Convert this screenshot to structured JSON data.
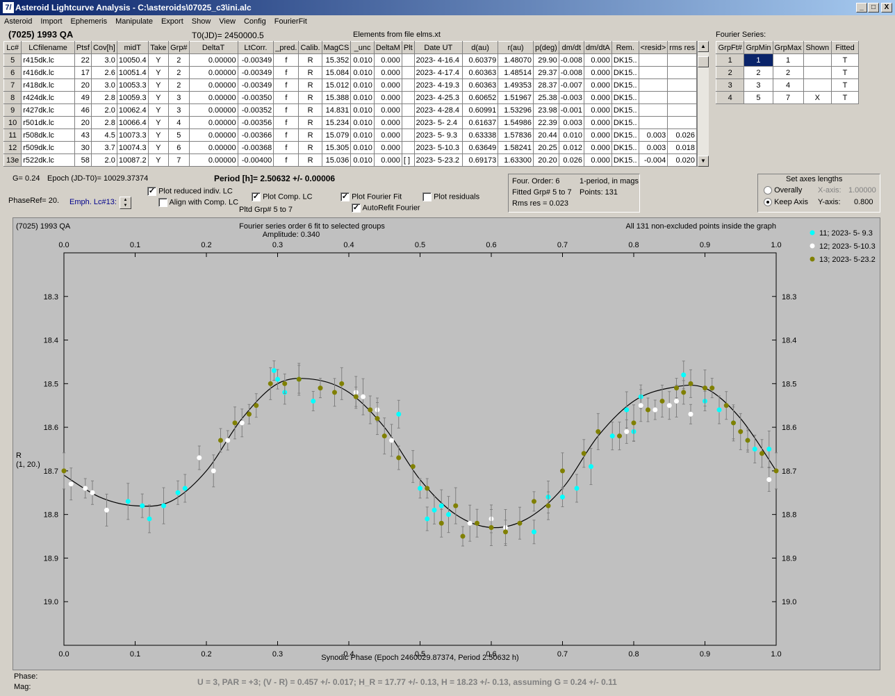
{
  "window": {
    "title": "Asteroid Lightcurve Analysis - C:\\asteroids\\07025_c3\\ini.alc",
    "icon_glyph": "7/",
    "min_glyph": "_",
    "max_glyph": "□",
    "close_glyph": "X"
  },
  "menu": [
    "Asteroid",
    "Import",
    "Ephemeris",
    "Manipulate",
    "Export",
    "Show",
    "View",
    "Config",
    "FourierFit"
  ],
  "asteroid_name": "(7025) 1993 QA",
  "t0": "T0(JD)= 2450000.5",
  "elements_file": "Elements from file elms.xt",
  "fourier_series_label": "Fourier Series:",
  "table": {
    "headers": [
      "Lc#",
      "LCfilename",
      "Ptsf",
      "Cov[h]",
      "midT",
      "Take",
      "Grp#",
      "DeltaT",
      "LtCorr.",
      "_pred.",
      "Calib.",
      "MagCS",
      "_unc",
      "DeltaM",
      "Plt",
      "Date UT",
      "d(au)",
      "r(au)",
      "p(deg)",
      "dm/dt",
      "dm/dtA",
      "Rem.",
      "<resid>",
      "rms res"
    ],
    "rows": [
      [
        "5",
        "r415dk.lc",
        "22",
        "3.0",
        "10050.4",
        "Y",
        "2",
        "0.00000",
        "-0.00349",
        "f",
        "R",
        "15.352",
        "0.010",
        "0.000",
        "",
        "2023- 4-16.4",
        "0.60379",
        "1.48070",
        "29.90",
        "-0.008",
        "0.000",
        "DK15..",
        "",
        ""
      ],
      [
        "6",
        "r416dk.lc",
        "17",
        "2.6",
        "10051.4",
        "Y",
        "2",
        "0.00000",
        "-0.00349",
        "f",
        "R",
        "15.084",
        "0.010",
        "0.000",
        "",
        "2023- 4-17.4",
        "0.60363",
        "1.48514",
        "29.37",
        "-0.008",
        "0.000",
        "DK15..",
        "",
        ""
      ],
      [
        "7",
        "r418dk.lc",
        "20",
        "3.0",
        "10053.3",
        "Y",
        "2",
        "0.00000",
        "-0.00349",
        "f",
        "R",
        "15.012",
        "0.010",
        "0.000",
        "",
        "2023- 4-19.3",
        "0.60363",
        "1.49353",
        "28.37",
        "-0.007",
        "0.000",
        "DK15..",
        "",
        ""
      ],
      [
        "8",
        "r424dk.lc",
        "49",
        "2.8",
        "10059.3",
        "Y",
        "3",
        "0.00000",
        "-0.00350",
        "f",
        "R",
        "15.388",
        "0.010",
        "0.000",
        "",
        "2023- 4-25.3",
        "0.60652",
        "1.51967",
        "25.38",
        "-0.003",
        "0.000",
        "DK15..",
        "",
        ""
      ],
      [
        "9",
        "r427dk.lc",
        "46",
        "2.0",
        "10062.4",
        "Y",
        "3",
        "0.00000",
        "-0.00352",
        "f",
        "R",
        "14.831",
        "0.010",
        "0.000",
        "",
        "2023- 4-28.4",
        "0.60991",
        "1.53296",
        "23.98",
        "-0.001",
        "0.000",
        "DK15..",
        "",
        ""
      ],
      [
        "10",
        "r501dk.lc",
        "20",
        "2.8",
        "10066.4",
        "Y",
        "4",
        "0.00000",
        "-0.00356",
        "f",
        "R",
        "15.234",
        "0.010",
        "0.000",
        "",
        "2023- 5- 2.4",
        "0.61637",
        "1.54986",
        "22.39",
        "0.003",
        "0.000",
        "DK15..",
        "",
        ""
      ],
      [
        "11",
        "r508dk.lc",
        "43",
        "4.5",
        "10073.3",
        "Y",
        "5",
        "0.00000",
        "-0.00366",
        "f",
        "R",
        "15.079",
        "0.010",
        "0.000",
        "",
        "2023- 5- 9.3",
        "0.63338",
        "1.57836",
        "20.44",
        "0.010",
        "0.000",
        "DK15..",
        "0.003",
        "0.026"
      ],
      [
        "12",
        "r509dk.lc",
        "30",
        "3.7",
        "10074.3",
        "Y",
        "6",
        "0.00000",
        "-0.00368",
        "f",
        "R",
        "15.305",
        "0.010",
        "0.000",
        "",
        "2023- 5-10.3",
        "0.63649",
        "1.58241",
        "20.25",
        "0.012",
        "0.000",
        "DK15..",
        "0.003",
        "0.018"
      ],
      [
        "13e",
        "r522dk.lc",
        "58",
        "2.0",
        "10087.2",
        "Y",
        "7",
        "0.00000",
        "-0.00400",
        "f",
        "R",
        "15.036",
        "0.010",
        "0.000",
        "[ ]",
        "2023- 5-23.2",
        "0.69173",
        "1.63300",
        "20.20",
        "0.026",
        "0.000",
        "DK15..",
        "-0.004",
        "0.020"
      ]
    ]
  },
  "fourier_table": {
    "headers": [
      "GrpFt#",
      "GrpMin",
      "GrpMax",
      "Shown",
      "Fitted"
    ],
    "rows": [
      [
        "1",
        "1",
        "1",
        "",
        "T"
      ],
      [
        "2",
        "2",
        "2",
        "",
        "T"
      ],
      [
        "3",
        "3",
        "4",
        "",
        "T"
      ],
      [
        "4",
        "5",
        "7",
        "X",
        "T"
      ]
    ]
  },
  "controls": {
    "g_value": "G= 0.24",
    "epoch": "Epoch (JD-T0)= 10029.37374",
    "period": "Period [h]= 2.50632 +/- 0.00006",
    "phaseref": "PhaseRef= 20.",
    "emph": "Emph. Lc#13:",
    "plot_reduced": "Plot reduced indiv. LC",
    "align_comp": "Align with Comp. LC",
    "plot_comp": "Plot Comp. LC",
    "pltd_grp": "Pltd Grp#  5  to   7",
    "plot_fourier": "Plot Fourier Fit",
    "autorefit": "AutoRefit Fourier",
    "plot_residuals": "Plot residuals",
    "check_glyph": "✓"
  },
  "fit_info": {
    "order": "Four. Order:  6",
    "mode": "1-period, in mags",
    "fitted": "Fitted Grp# 5 to 7",
    "points": "Points: 131",
    "rms": "Rms res      = 0.023"
  },
  "axes_panel": {
    "title": "Set axes lengths",
    "overally": "Overally",
    "keep": "Keep Axis",
    "xaxis_label": "X-axis:",
    "xaxis_val": "1.00000",
    "yaxis_label": "Y-axis:",
    "yaxis_val": "0.800"
  },
  "plot": {
    "corner_title": "(7025) 1993 QA",
    "subtitle1": "Fourier series order 6 fit to selected groups",
    "subtitle2": "Amplitude: 0.340",
    "note": "All 131 non-excluded points inside the graph",
    "ylabel1": "R",
    "ylabel2": "(1, 20.)",
    "xlabel": "Synodic Phase (Epoch 2460029.87374, Period 2.50632 h)"
  },
  "footer": {
    "phase_label": "Phase:",
    "mag_label": "Mag:",
    "summary": "U = 3, PAR = +3; (V - R) = 0.457 +/- 0.017; H_R = 17.77 +/- 0.13, H = 18.23 +/- 0.13, assuming G = 0.24 +/- 0.11"
  },
  "colors": {
    "cyan": "#00ffff",
    "white": "#ffffff",
    "olive": "#808000",
    "plot_bg": "#c0c0c0",
    "selected": "#0a246a"
  },
  "chart_data": {
    "type": "scatter",
    "title": "Fourier series order 6 fit to selected groups",
    "xlabel": "Synodic Phase (Epoch 2460029.87374, Period 2.50632 h)",
    "ylabel": "R (1, 20.)",
    "xlim": [
      0.0,
      1.0
    ],
    "ylim": [
      19.1,
      18.2
    ],
    "x_ticks": [
      "0.0",
      "0.1",
      "0.2",
      "0.3",
      "0.4",
      "0.5",
      "0.6",
      "0.7",
      "0.8",
      "0.9",
      "1.0"
    ],
    "y_ticks": [
      "18.3",
      "18.4",
      "18.5",
      "18.6",
      "18.7",
      "18.8",
      "18.9",
      "19.0"
    ],
    "legend_position": "right",
    "series": [
      {
        "name": "11; 2023- 5- 9.3",
        "color": "#00ffff",
        "points": [
          [
            0.09,
            18.77
          ],
          [
            0.11,
            18.78
          ],
          [
            0.12,
            18.81
          ],
          [
            0.14,
            18.78
          ],
          [
            0.16,
            18.75
          ],
          [
            0.17,
            18.74
          ],
          [
            0.295,
            18.47
          ],
          [
            0.3,
            18.49
          ],
          [
            0.31,
            18.52
          ],
          [
            0.33,
            18.49
          ],
          [
            0.35,
            18.54
          ],
          [
            0.47,
            18.57
          ],
          [
            0.5,
            18.74
          ],
          [
            0.51,
            18.81
          ],
          [
            0.52,
            18.79
          ],
          [
            0.53,
            18.78
          ],
          [
            0.54,
            18.8
          ],
          [
            0.66,
            18.84
          ],
          [
            0.68,
            18.76
          ],
          [
            0.7,
            18.76
          ],
          [
            0.72,
            18.74
          ],
          [
            0.74,
            18.69
          ],
          [
            0.77,
            18.62
          ],
          [
            0.79,
            18.56
          ],
          [
            0.8,
            18.61
          ],
          [
            0.81,
            18.53
          ],
          [
            0.87,
            18.48
          ],
          [
            0.9,
            18.54
          ],
          [
            0.92,
            18.56
          ],
          [
            0.94,
            18.59
          ],
          [
            0.96,
            18.63
          ],
          [
            0.97,
            18.65
          ],
          [
            0.99,
            18.65
          ]
        ]
      },
      {
        "name": "12; 2023- 5-10.3",
        "color": "#ffffff",
        "points": [
          [
            0.01,
            18.73
          ],
          [
            0.03,
            18.74
          ],
          [
            0.04,
            18.75
          ],
          [
            0.06,
            18.79
          ],
          [
            0.19,
            18.67
          ],
          [
            0.21,
            18.7
          ],
          [
            0.23,
            18.63
          ],
          [
            0.25,
            18.59
          ],
          [
            0.41,
            18.52
          ],
          [
            0.42,
            18.53
          ],
          [
            0.44,
            18.56
          ],
          [
            0.46,
            18.63
          ],
          [
            0.57,
            18.82
          ],
          [
            0.6,
            18.81
          ],
          [
            0.62,
            18.83
          ],
          [
            0.79,
            18.61
          ],
          [
            0.81,
            18.55
          ],
          [
            0.83,
            18.56
          ],
          [
            0.85,
            18.55
          ],
          [
            0.86,
            18.54
          ],
          [
            0.88,
            18.57
          ],
          [
            0.99,
            18.72
          ]
        ]
      },
      {
        "name": "13; 2023- 5-23.2",
        "color": "#808000",
        "points": [
          [
            0.0,
            18.7
          ],
          [
            0.22,
            18.63
          ],
          [
            0.24,
            18.59
          ],
          [
            0.26,
            18.57
          ],
          [
            0.27,
            18.55
          ],
          [
            0.29,
            18.5
          ],
          [
            0.31,
            18.5
          ],
          [
            0.33,
            18.49
          ],
          [
            0.36,
            18.51
          ],
          [
            0.38,
            18.52
          ],
          [
            0.39,
            18.5
          ],
          [
            0.41,
            18.53
          ],
          [
            0.43,
            18.56
          ],
          [
            0.44,
            18.58
          ],
          [
            0.45,
            18.62
          ],
          [
            0.47,
            18.67
          ],
          [
            0.49,
            18.69
          ],
          [
            0.51,
            18.74
          ],
          [
            0.53,
            18.82
          ],
          [
            0.55,
            18.78
          ],
          [
            0.56,
            18.85
          ],
          [
            0.58,
            18.82
          ],
          [
            0.6,
            18.83
          ],
          [
            0.62,
            18.84
          ],
          [
            0.64,
            18.82
          ],
          [
            0.66,
            18.77
          ],
          [
            0.68,
            18.78
          ],
          [
            0.7,
            18.7
          ],
          [
            0.73,
            18.66
          ],
          [
            0.75,
            18.61
          ],
          [
            0.78,
            18.62
          ],
          [
            0.8,
            18.59
          ],
          [
            0.82,
            18.56
          ],
          [
            0.84,
            18.54
          ],
          [
            0.86,
            18.51
          ],
          [
            0.87,
            18.52
          ],
          [
            0.88,
            18.5
          ],
          [
            0.9,
            18.51
          ],
          [
            0.91,
            18.51
          ],
          [
            0.93,
            18.55
          ],
          [
            0.94,
            18.59
          ],
          [
            0.95,
            18.61
          ],
          [
            0.96,
            18.63
          ],
          [
            0.98,
            18.66
          ],
          [
            1.0,
            18.7
          ]
        ]
      }
    ],
    "fit_curve": {
      "name": "Fourier fit",
      "x": [
        0.0,
        0.05,
        0.1,
        0.15,
        0.2,
        0.25,
        0.3,
        0.35,
        0.4,
        0.45,
        0.5,
        0.55,
        0.6,
        0.65,
        0.7,
        0.75,
        0.8,
        0.85,
        0.9,
        0.95,
        1.0
      ],
      "y": [
        18.71,
        18.76,
        18.78,
        18.77,
        18.7,
        18.58,
        18.5,
        18.49,
        18.52,
        18.6,
        18.72,
        18.8,
        18.83,
        18.81,
        18.74,
        18.62,
        18.54,
        18.51,
        18.51,
        18.58,
        18.7
      ]
    }
  }
}
